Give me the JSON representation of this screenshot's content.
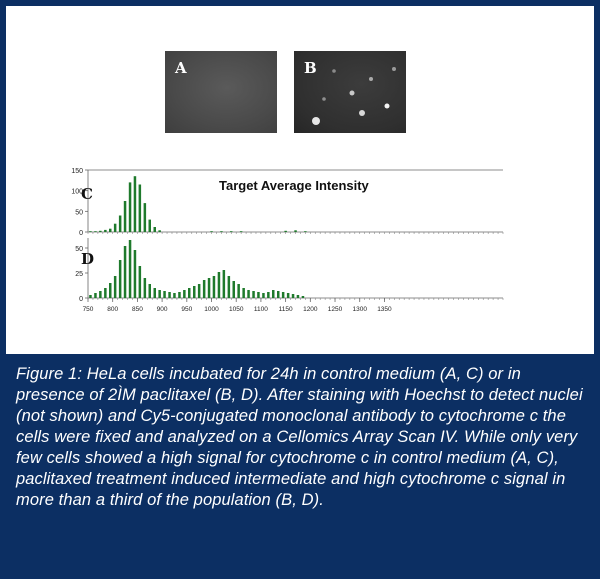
{
  "figure": {
    "panels": [
      {
        "id": "A",
        "label": "A"
      },
      {
        "id": "B",
        "label": "B"
      }
    ],
    "caption": "Figure 1: HeLa cells incubated for 24h in control medium (A, C) or in presence of 2ÌM paclitaxel (B, D). After staining with Hoechst to detect nuclei (not shown) and Cy5-conjugated monoclonal antibody to cytochrome c the cells were fixed and analyzed on a Cellomics Array Scan IV. While only very few cells showed a high signal for cytochrome c in control medium (A, C), paclitaxed treatment induced intermediate and high cytochrome c signal in more than a third of the population (B, D).",
    "colors": {
      "frame": "#0c2f63",
      "bar": "#1f7a2c",
      "axis": "#555555"
    }
  },
  "chart_data": [
    {
      "type": "bar",
      "panel": "C",
      "title": "Target Average Intensity",
      "x_ticks": [],
      "y_ticks": [
        0,
        50,
        100,
        150
      ],
      "ylim": [
        0,
        150
      ],
      "xlim": [
        750,
        1590
      ],
      "x": [
        755,
        765,
        775,
        785,
        795,
        805,
        815,
        825,
        835,
        845,
        855,
        865,
        875,
        885,
        895,
        1000,
        1020,
        1040,
        1060,
        1150,
        1170,
        1190
      ],
      "values": [
        2,
        2,
        3,
        5,
        8,
        20,
        40,
        75,
        120,
        135,
        115,
        70,
        30,
        12,
        4,
        2,
        2,
        2,
        2,
        3,
        4,
        2
      ]
    },
    {
      "type": "bar",
      "panel": "D",
      "title": "",
      "x_ticks": [
        750,
        800,
        850,
        900,
        950,
        1000,
        1050,
        1100,
        1150,
        1200,
        1250,
        1300,
        1350
      ],
      "y_ticks": [
        0,
        25,
        50
      ],
      "ylim": [
        0,
        60
      ],
      "xlim": [
        750,
        1590
      ],
      "x": [
        755,
        765,
        775,
        785,
        795,
        805,
        815,
        825,
        835,
        845,
        855,
        865,
        875,
        885,
        895,
        905,
        915,
        925,
        935,
        945,
        955,
        965,
        975,
        985,
        995,
        1005,
        1015,
        1025,
        1035,
        1045,
        1055,
        1065,
        1075,
        1085,
        1095,
        1105,
        1115,
        1125,
        1135,
        1145,
        1155,
        1165,
        1175,
        1185
      ],
      "values": [
        3,
        5,
        7,
        10,
        15,
        22,
        38,
        52,
        58,
        48,
        32,
        20,
        14,
        10,
        8,
        7,
        6,
        5,
        6,
        8,
        10,
        12,
        14,
        18,
        20,
        22,
        26,
        28,
        22,
        17,
        14,
        10,
        8,
        7,
        6,
        5,
        6,
        8,
        7,
        6,
        5,
        4,
        3,
        2
      ]
    }
  ]
}
